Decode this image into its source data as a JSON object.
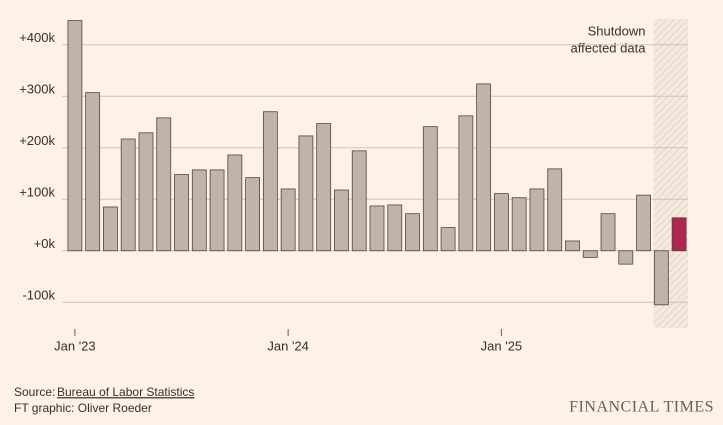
{
  "chart_data": {
    "type": "bar",
    "categories": [
      "Jan '23",
      null,
      null,
      null,
      null,
      null,
      null,
      null,
      null,
      null,
      null,
      null,
      "Jan '24",
      null,
      null,
      null,
      null,
      null,
      null,
      null,
      null,
      null,
      null,
      null,
      "Jan '25",
      null,
      null,
      null,
      null,
      null,
      null,
      null,
      null,
      null,
      null
    ],
    "values": [
      447,
      307,
      85,
      217,
      229,
      258,
      148,
      157,
      157,
      186,
      142,
      270,
      120,
      223,
      247,
      118,
      194,
      87,
      89,
      72,
      241,
      45,
      262,
      324,
      111,
      103,
      120,
      159,
      19,
      -13,
      72,
      -26,
      108,
      -105,
      64
    ],
    "color": "#bfb3aa",
    "stroke": "#4d4845",
    "highlight_color": "#b0264f",
    "highlight_index": 34,
    "ylim": [
      -150,
      450
    ],
    "yticks": [
      {
        "value": -100,
        "label": "-100k"
      },
      {
        "value": 0,
        "label": "+0k"
      },
      {
        "value": 100,
        "label": "+100k"
      },
      {
        "value": 200,
        "label": "+200k"
      },
      {
        "value": 300,
        "label": "+300k"
      },
      {
        "value": 400,
        "label": "+400k"
      }
    ],
    "grid": true,
    "shaded": {
      "from": 33,
      "to": 34,
      "label": [
        "Shutdown",
        "affected data"
      ]
    },
    "source_prefix": "Source:",
    "source": "Bureau of Labor Statistics",
    "credit": "FT graphic: Oliver Roeder",
    "brand": "FINANCIAL TIMES"
  }
}
